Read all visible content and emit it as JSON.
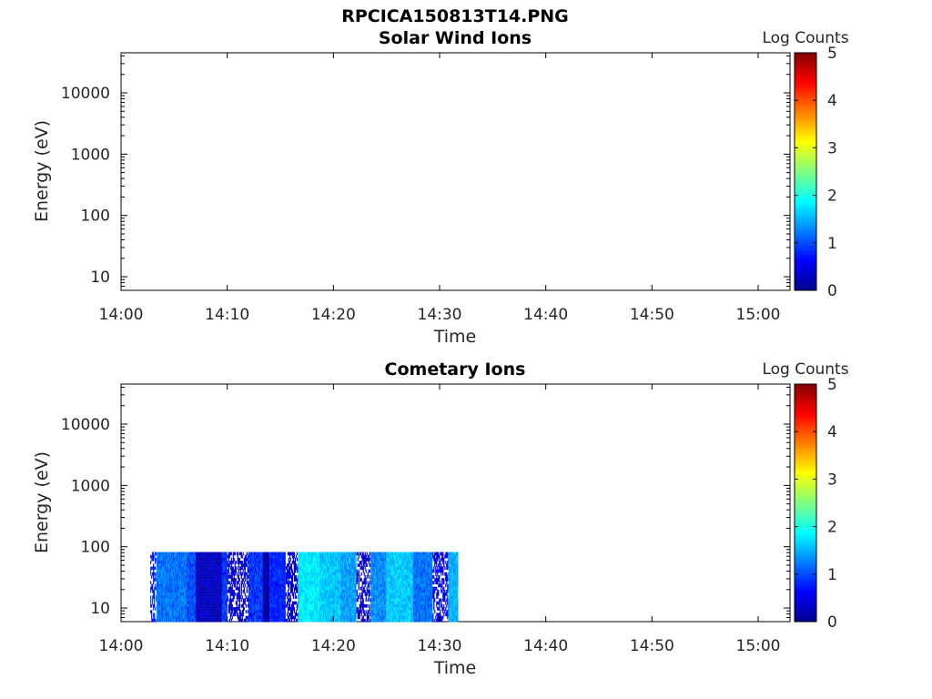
{
  "figure_title": "RPCICA150813T14.PNG",
  "chart_data": [
    {
      "type": "heatmap",
      "title": "Solar Wind Ions",
      "xlabel": "Time",
      "ylabel": "Energy (eV)",
      "yscale": "log",
      "xlim": [
        "14:00",
        "15:03"
      ],
      "ylim": [
        6,
        45000
      ],
      "x_ticks": [
        "14:00",
        "14:10",
        "14:20",
        "14:30",
        "14:40",
        "14:50",
        "15:00"
      ],
      "y_ticks": [
        "10",
        "100",
        "1000",
        "10000"
      ],
      "y_tick_values": [
        10,
        100,
        1000,
        10000
      ],
      "colorbar": {
        "label": "Log Counts",
        "min": 0,
        "max": 5,
        "ticks": [
          "0",
          "1",
          "2",
          "3",
          "4",
          "5"
        ],
        "colormap": "jet"
      },
      "data_extent": null,
      "segments": []
    },
    {
      "type": "heatmap",
      "title": "Cometary Ions",
      "xlabel": "Time",
      "ylabel": "Energy (eV)",
      "yscale": "log",
      "xlim": [
        "14:00",
        "15:03"
      ],
      "ylim": [
        6,
        45000
      ],
      "x_ticks": [
        "14:00",
        "14:10",
        "14:20",
        "14:30",
        "14:40",
        "14:50",
        "15:00"
      ],
      "y_ticks": [
        "10",
        "100",
        "1000",
        "10000"
      ],
      "y_tick_values": [
        10,
        100,
        1000,
        10000
      ],
      "colorbar": {
        "label": "Log Counts",
        "min": 0,
        "max": 5,
        "ticks": [
          "0",
          "1",
          "2",
          "3",
          "4",
          "5"
        ],
        "colormap": "jet"
      },
      "data_extent": {
        "time_start": "14:02:45",
        "time_end": "14:31:45",
        "energy_min": 6,
        "energy_max": 82
      },
      "segments": [
        {
          "start": "14:02:45",
          "end": "14:03:20",
          "log_counts": 0.8,
          "sparse": true
        },
        {
          "start": "14:03:20",
          "end": "14:06:10",
          "log_counts": 1.2,
          "sparse": false
        },
        {
          "start": "14:06:10",
          "end": "14:07:00",
          "log_counts": 1.0,
          "sparse": false
        },
        {
          "start": "14:07:00",
          "end": "14:09:30",
          "log_counts": 0.3,
          "sparse": false
        },
        {
          "start": "14:09:30",
          "end": "14:10:00",
          "log_counts": 0.9,
          "sparse": false
        },
        {
          "start": "14:10:00",
          "end": "14:12:00",
          "log_counts": 0.4,
          "sparse": true
        },
        {
          "start": "14:12:00",
          "end": "14:13:20",
          "log_counts": 0.9,
          "sparse": false
        },
        {
          "start": "14:13:20",
          "end": "14:14:00",
          "log_counts": 0.2,
          "sparse": false
        },
        {
          "start": "14:14:00",
          "end": "14:15:30",
          "log_counts": 0.8,
          "sparse": false
        },
        {
          "start": "14:15:30",
          "end": "14:16:40",
          "log_counts": 0.5,
          "sparse": true
        },
        {
          "start": "14:16:40",
          "end": "14:18:40",
          "log_counts": 1.8,
          "sparse": false
        },
        {
          "start": "14:18:40",
          "end": "14:20:40",
          "log_counts": 1.6,
          "sparse": false
        },
        {
          "start": "14:20:40",
          "end": "14:22:10",
          "log_counts": 1.4,
          "sparse": false
        },
        {
          "start": "14:22:10",
          "end": "14:23:30",
          "log_counts": 0.4,
          "sparse": true
        },
        {
          "start": "14:23:30",
          "end": "14:25:00",
          "log_counts": 1.3,
          "sparse": false
        },
        {
          "start": "14:25:00",
          "end": "14:27:30",
          "log_counts": 1.6,
          "sparse": false
        },
        {
          "start": "14:27:30",
          "end": "14:29:20",
          "log_counts": 1.2,
          "sparse": false
        },
        {
          "start": "14:29:20",
          "end": "14:30:50",
          "log_counts": 0.5,
          "sparse": true
        },
        {
          "start": "14:30:50",
          "end": "14:31:45",
          "log_counts": 1.5,
          "sparse": false
        }
      ]
    }
  ]
}
